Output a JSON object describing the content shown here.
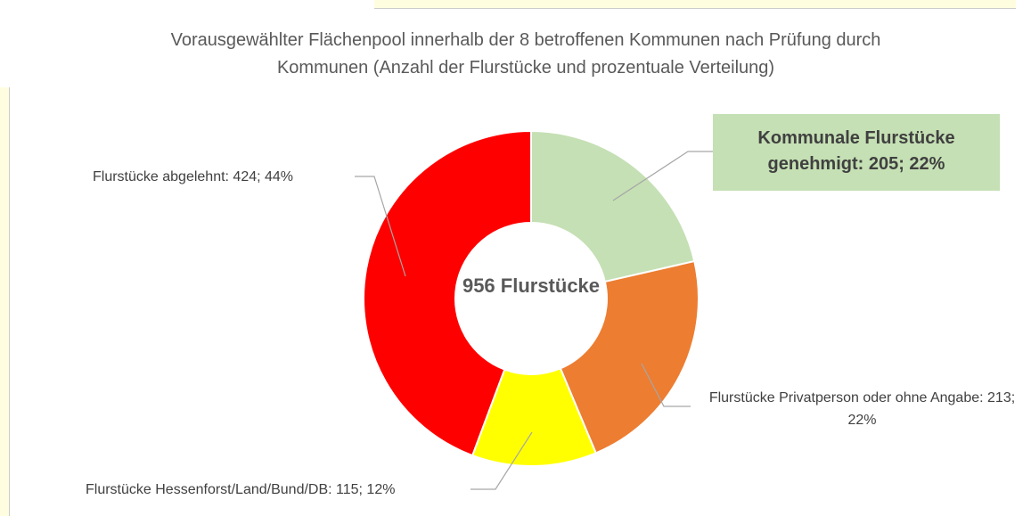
{
  "chart_data": {
    "type": "donut",
    "title": "Vorausgewählter Flächenpool innerhalb der 8 betroffenen Kommunen nach Prüfung durch Kommunen (Anzahl der Flurstücke und prozentuale Verteilung)",
    "center_label": "956 Flurstücke",
    "categories": [
      "Kommunale Flurstücke genehmigt",
      "Flurstücke Privatperson oder ohne Angabe",
      "Flurstücke Hessenforst/Land/Bund/DB",
      "Flurstücke abgelehnt"
    ],
    "values": [
      205,
      213,
      115,
      424
    ],
    "value_labels": [
      "Kommunale Flurstücke genehmigt: 205; 22%",
      "Flurstücke Privatperson oder ohne Angabe: 213; 22%",
      "Flurstücke Hessenforst/Land/Bund/DB: 115; 12%",
      "Flurstücke abgelehnt: 424; 44%"
    ],
    "colors": [
      "#c5e0b4",
      "#ed7d31",
      "#ffff00",
      "#ff0000"
    ]
  }
}
